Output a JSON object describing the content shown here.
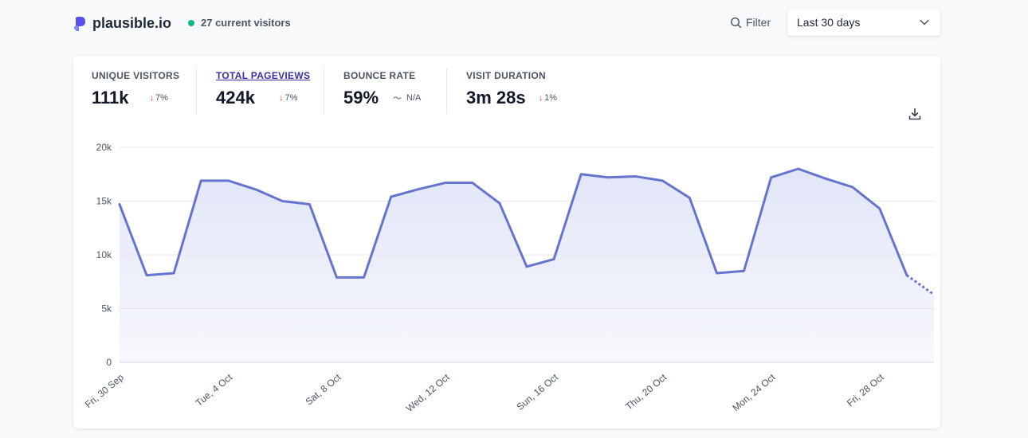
{
  "header": {
    "site_name": "plausible.io",
    "current_visitors": "27 current visitors",
    "filter_label": "Filter",
    "period_label": "Last 30 days"
  },
  "stats": [
    {
      "label": "UNIQUE VISITORS",
      "value": "111k",
      "change": "7%",
      "trend": "down"
    },
    {
      "label": "TOTAL PAGEVIEWS",
      "value": "424k",
      "change": "7%",
      "trend": "down"
    },
    {
      "label": "BOUNCE RATE",
      "value": "59%",
      "change": "N/A",
      "trend": "flat"
    },
    {
      "label": "VISIT DURATION",
      "value": "3m 28s",
      "change": "1%",
      "trend": "down"
    }
  ],
  "colors": {
    "line": "#6574cd",
    "fill": "#e0e4f7",
    "accent": "#3730a3",
    "live_dot": "#10b981",
    "down_arrow": "#ef4444"
  },
  "icons": [
    "plausible-logo-icon",
    "search-icon",
    "chevron-down-icon",
    "download-icon",
    "arrow-down-icon",
    "flat-trend-icon"
  ],
  "chart_data": {
    "type": "area",
    "title": "",
    "xlabel": "",
    "ylabel": "",
    "ylim": [
      0,
      20000
    ],
    "yticks": [
      "0",
      "5k",
      "10k",
      "15k",
      "20k"
    ],
    "x": [
      "Fri, 30 Sep",
      "Sat, 1 Oct",
      "Sun, 2 Oct",
      "Mon, 3 Oct",
      "Tue, 4 Oct",
      "Wed, 5 Oct",
      "Thu, 6 Oct",
      "Fri, 7 Oct",
      "Sat, 8 Oct",
      "Sun, 9 Oct",
      "Mon, 10 Oct",
      "Tue, 11 Oct",
      "Wed, 12 Oct",
      "Thu, 13 Oct",
      "Fri, 14 Oct",
      "Sat, 15 Oct",
      "Sun, 16 Oct",
      "Mon, 17 Oct",
      "Tue, 18 Oct",
      "Wed, 19 Oct",
      "Thu, 20 Oct",
      "Fri, 21 Oct",
      "Sat, 22 Oct",
      "Sun, 23 Oct",
      "Mon, 24 Oct",
      "Tue, 25 Oct",
      "Wed, 26 Oct",
      "Thu, 27 Oct",
      "Fri, 28 Oct",
      "Sat, 29 Oct",
      "Sun, 30 Oct"
    ],
    "xticks_shown": [
      "Fri, 30 Sep",
      "Tue, 4 Oct",
      "Sat, 8 Oct",
      "Wed, 12 Oct",
      "Sun, 16 Oct",
      "Thu, 20 Oct",
      "Mon, 24 Oct",
      "Fri, 28 Oct"
    ],
    "series": [
      {
        "values": [
          14700,
          8100,
          8300,
          16900,
          16900,
          16100,
          15000,
          14700,
          7900,
          7900,
          15400,
          16100,
          16700,
          16700,
          14800,
          8900,
          9600,
          17500,
          17200,
          17300,
          16900,
          15300,
          8300,
          8500,
          17200,
          18000,
          17100,
          16300,
          14300,
          8100,
          6300
        ]
      }
    ],
    "partial_last_period": true,
    "grid": true
  }
}
